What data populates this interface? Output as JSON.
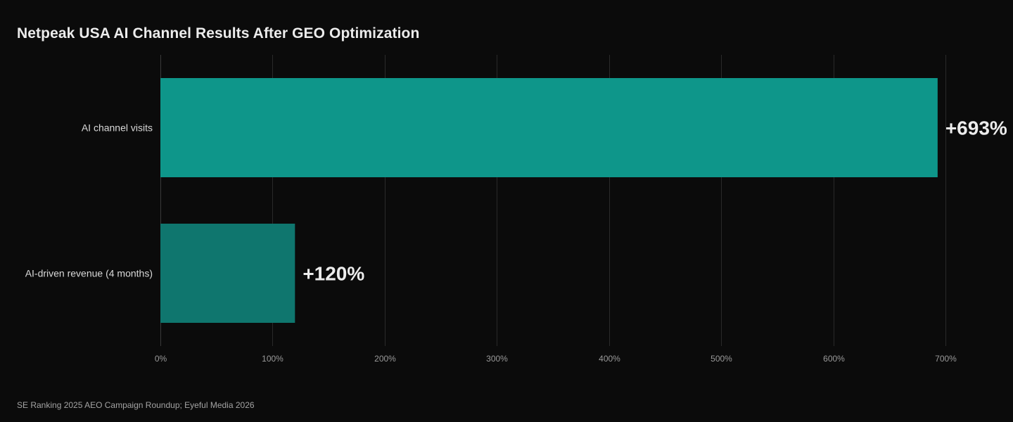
{
  "colors": {
    "background": "#0b0b0b",
    "bar_primary": "#0e968a",
    "bar_secondary": "#0f766e",
    "grid": "#2a2a2a"
  },
  "source": "SE Ranking 2025 AEO Campaign Roundup; Eyeful Media 2026",
  "chart_data": {
    "type": "bar",
    "orientation": "horizontal",
    "title": "Netpeak USA AI Channel Results After GEO Optimization",
    "xlabel": "",
    "ylabel": "",
    "categories": [
      "AI channel visits",
      "AI-driven revenue (4 months)"
    ],
    "values": [
      693,
      120
    ],
    "value_labels": [
      "+693%",
      "+120%"
    ],
    "xlim": [
      0,
      700
    ],
    "x_ticks": [
      0,
      100,
      200,
      300,
      400,
      500,
      600,
      700
    ],
    "x_tick_labels": [
      "0%",
      "100%",
      "200%",
      "300%",
      "400%",
      "500%",
      "600%",
      "700%"
    ],
    "grid": true,
    "legend": "none"
  }
}
